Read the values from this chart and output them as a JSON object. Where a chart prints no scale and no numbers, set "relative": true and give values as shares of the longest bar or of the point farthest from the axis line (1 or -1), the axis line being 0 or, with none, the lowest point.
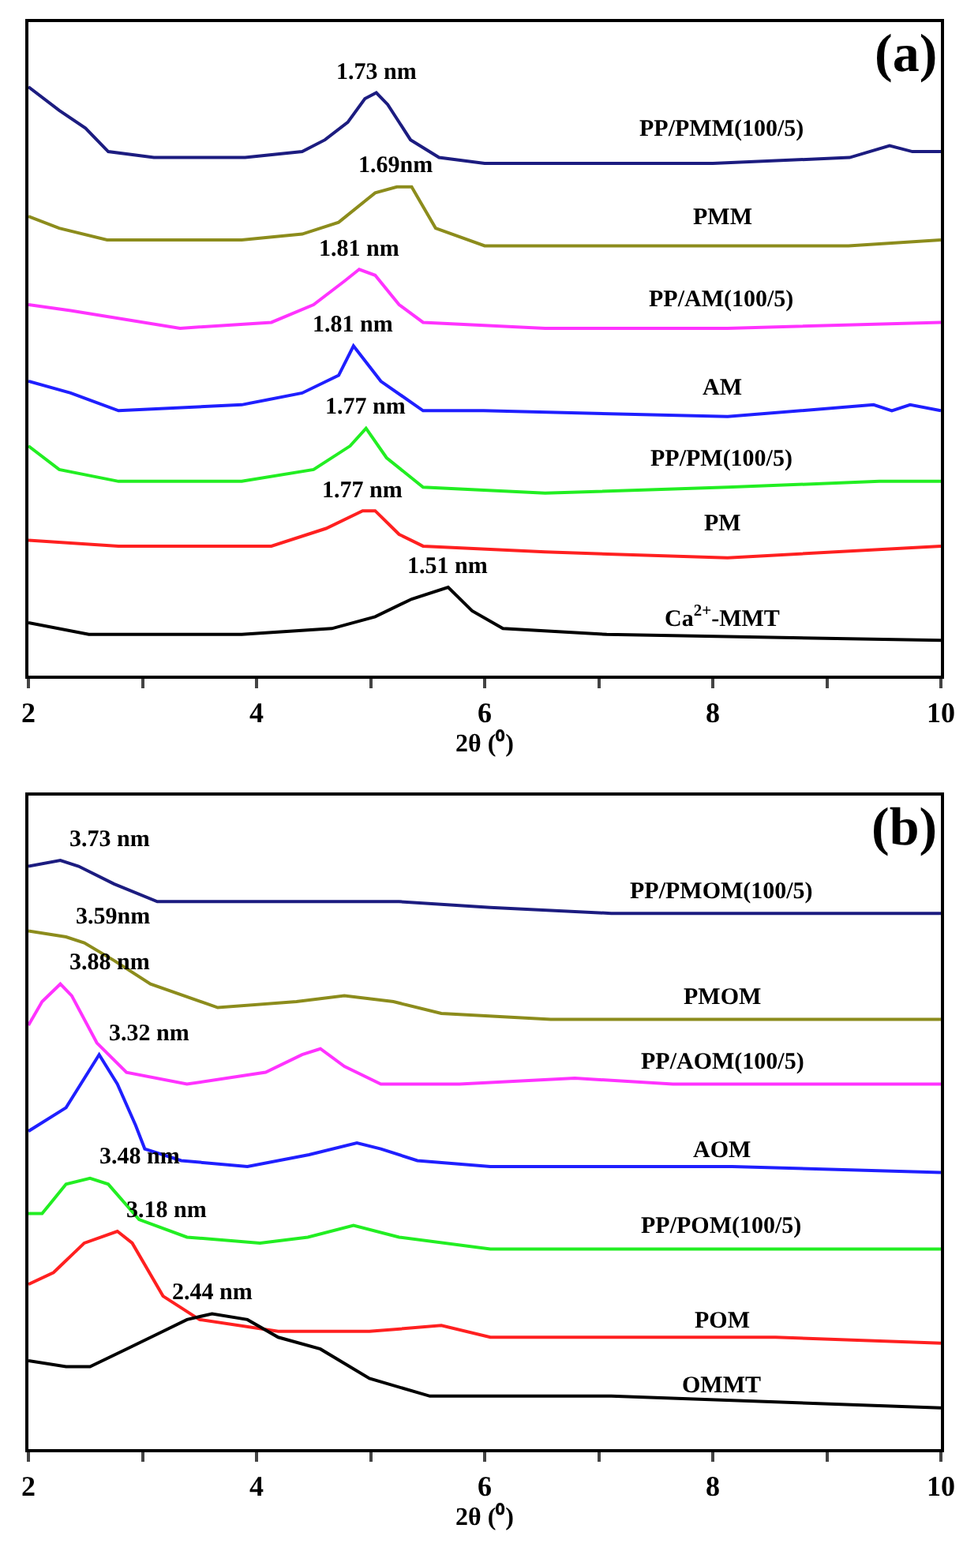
{
  "chart_data": [
    {
      "type": "line",
      "title": "(a)",
      "xlabel": "2θ (⁰)",
      "relative": true,
      "xlim": [
        2,
        10
      ],
      "xticks": [
        2,
        {
          "value": 3,
          "label": null
        },
        4,
        {
          "value": 5,
          "label": null
        },
        6,
        {
          "value": 7,
          "label": null
        },
        8,
        {
          "value": 9,
          "label": null
        },
        10
      ],
      "series": [
        {
          "name": "PP/PMM(100/5)",
          "color": "#1c1c80",
          "x": [
            2,
            2.27,
            2.5,
            2.7,
            3.1,
            3.9,
            4.4,
            4.6,
            4.8,
            4.95,
            5.05,
            5.15,
            5.35,
            5.6,
            6,
            7,
            8,
            9.2,
            9.55,
            9.75,
            10
          ],
          "values": [
            1.0,
            0.96,
            0.93,
            0.89,
            0.88,
            0.88,
            0.89,
            0.91,
            0.94,
            0.98,
            0.99,
            0.97,
            0.91,
            0.88,
            0.87,
            0.87,
            0.87,
            0.88,
            0.9,
            0.89,
            0.89
          ]
        },
        {
          "name": "PMM",
          "color": "#8c8c1c",
          "x": [
            2,
            2.27,
            2.69,
            3.87,
            4.4,
            4.72,
            5.04,
            5.23,
            5.36,
            5.57,
            6,
            7.07,
            9.19,
            10
          ],
          "values": [
            0.78,
            0.76,
            0.74,
            0.74,
            0.75,
            0.77,
            0.82,
            0.83,
            0.83,
            0.76,
            0.73,
            0.73,
            0.73,
            0.74
          ]
        },
        {
          "name": "PP/AM(100/5)",
          "color": "#ff33ff",
          "x": [
            2,
            2.37,
            3.33,
            4.13,
            4.5,
            4.77,
            4.9,
            5.04,
            5.25,
            5.46,
            6.53,
            8.13,
            10
          ],
          "values": [
            0.63,
            0.62,
            0.59,
            0.6,
            0.63,
            0.67,
            0.69,
            0.68,
            0.63,
            0.6,
            0.59,
            0.59,
            0.6
          ]
        },
        {
          "name": "AM",
          "color": "#1f1fff",
          "x": [
            2,
            2.37,
            2.79,
            3.87,
            4.4,
            4.72,
            4.85,
            5.09,
            5.46,
            5.99,
            8.13,
            9.41,
            9.57,
            9.73,
            10
          ],
          "values": [
            0.5,
            0.48,
            0.45,
            0.46,
            0.48,
            0.51,
            0.56,
            0.5,
            0.45,
            0.45,
            0.44,
            0.46,
            0.45,
            0.46,
            0.45
          ]
        },
        {
          "name": "PP/PM(100/5)",
          "color": "#22ee22",
          "x": [
            2,
            2.27,
            2.79,
            3.87,
            4.5,
            4.82,
            4.96,
            5.14,
            5.46,
            6.53,
            8.13,
            9.46,
            9.73,
            10
          ],
          "values": [
            0.39,
            0.35,
            0.33,
            0.33,
            0.35,
            0.39,
            0.42,
            0.37,
            0.32,
            0.31,
            0.32,
            0.33,
            0.33,
            0.33
          ]
        },
        {
          "name": "PM",
          "color": "#ff2020",
          "x": [
            2,
            2.79,
            4.13,
            4.61,
            4.93,
            5.04,
            5.25,
            5.46,
            6.53,
            8.13,
            10
          ],
          "values": [
            0.23,
            0.22,
            0.22,
            0.25,
            0.28,
            0.28,
            0.24,
            0.22,
            0.21,
            0.2,
            0.22
          ]
        },
        {
          "name": "Ca$^{2+}$-MMT",
          "color": "#000000",
          "x": [
            2,
            2.53,
            3.87,
            4.66,
            5.04,
            5.36,
            5.68,
            5.89,
            6.16,
            7.07,
            10
          ],
          "values": [
            0.09,
            0.07,
            0.07,
            0.08,
            0.1,
            0.13,
            0.15,
            0.11,
            0.08,
            0.07,
            0.06
          ]
        }
      ],
      "annotations": [
        {
          "text": "1.73 nm",
          "x": 5.05,
          "y": 0.99
        },
        {
          "text": "1.69nm",
          "x": 5.23,
          "y": 0.83
        },
        {
          "text": "1.81 nm",
          "x": 4.9,
          "y": 0.69
        },
        {
          "text": "1.81 nm",
          "x": 4.85,
          "y": 0.56
        },
        {
          "text": "1.77 nm",
          "x": 4.96,
          "y": 0.42
        },
        {
          "text": "1.77 nm",
          "x": 4.93,
          "y": 0.28
        },
        {
          "text": "1.51 nm",
          "x": 5.68,
          "y": 0.15
        }
      ]
    },
    {
      "type": "line",
      "title": "(b)",
      "xlabel": "2θ (⁰)",
      "relative": true,
      "xlim": [
        2,
        10
      ],
      "xticks": [
        2,
        {
          "value": 3,
          "label": null
        },
        4,
        {
          "value": 5,
          "label": null
        },
        6,
        {
          "value": 7,
          "label": null
        },
        8,
        {
          "value": 9,
          "label": null
        },
        10
      ],
      "series": [
        {
          "name": "PP/PMOM(100/5)",
          "color": "#1c1c80",
          "x": [
            2,
            2.28,
            2.44,
            2.75,
            3.13,
            3.66,
            4.56,
            5.25,
            6.05,
            7.11,
            10
          ],
          "values": [
            0.99,
            1.0,
            0.99,
            0.96,
            0.93,
            0.93,
            0.93,
            0.93,
            0.92,
            0.91,
            0.91
          ]
        },
        {
          "name": "PMOM",
          "color": "#8c8c1c",
          "x": [
            2,
            2.33,
            2.49,
            2.75,
            3.07,
            3.66,
            4.35,
            4.77,
            5.2,
            5.62,
            6.58,
            8.17,
            10
          ],
          "values": [
            0.88,
            0.87,
            0.86,
            0.83,
            0.79,
            0.75,
            0.76,
            0.77,
            0.76,
            0.74,
            0.73,
            0.73,
            0.73
          ]
        },
        {
          "name": "PP/AOM(100/5)",
          "color": "#ff33ff",
          "x": [
            2,
            2.12,
            2.28,
            2.38,
            2.6,
            2.86,
            3.39,
            4.08,
            4.4,
            4.56,
            4.77,
            5.09,
            5.78,
            6.79,
            7.65,
            9.5,
            10
          ],
          "values": [
            0.72,
            0.76,
            0.79,
            0.77,
            0.69,
            0.64,
            0.62,
            0.64,
            0.67,
            0.68,
            0.65,
            0.62,
            0.62,
            0.63,
            0.62,
            0.62,
            0.62
          ]
        },
        {
          "name": "AOM",
          "color": "#1f1fff",
          "x": [
            2,
            2.33,
            2.62,
            2.78,
            2.94,
            3.02,
            3.34,
            3.92,
            4.46,
            4.88,
            5.09,
            5.41,
            6.05,
            7.11,
            8.17,
            10
          ],
          "values": [
            0.54,
            0.58,
            0.67,
            0.62,
            0.55,
            0.51,
            0.49,
            0.48,
            0.5,
            0.52,
            0.51,
            0.49,
            0.48,
            0.48,
            0.48,
            0.47
          ]
        },
        {
          "name": "PP/POM(100/5)",
          "color": "#22ee22",
          "x": [
            2,
            2.12,
            2.33,
            2.54,
            2.7,
            2.97,
            3.39,
            4.03,
            4.45,
            4.85,
            5.25,
            6.05,
            8.17,
            9.55,
            10
          ],
          "values": [
            0.4,
            0.4,
            0.45,
            0.46,
            0.45,
            0.39,
            0.36,
            0.35,
            0.36,
            0.38,
            0.36,
            0.34,
            0.34,
            0.34,
            0.34
          ]
        },
        {
          "name": "POM",
          "color": "#ff2020",
          "x": [
            2,
            2.22,
            2.49,
            2.78,
            2.91,
            3.18,
            3.5,
            4.19,
            4.99,
            5.62,
            6.05,
            7.11,
            8.55,
            10
          ],
          "values": [
            0.28,
            0.3,
            0.35,
            0.37,
            0.35,
            0.26,
            0.22,
            0.2,
            0.2,
            0.21,
            0.19,
            0.19,
            0.19,
            0.18
          ]
        },
        {
          "name": "OMMT",
          "color": "#000000",
          "x": [
            2,
            2.33,
            2.54,
            2.86,
            3.18,
            3.39,
            3.61,
            3.92,
            4.19,
            4.56,
            4.99,
            5.52,
            6.05,
            7.11,
            10
          ],
          "values": [
            0.15,
            0.14,
            0.14,
            0.17,
            0.2,
            0.22,
            0.23,
            0.22,
            0.19,
            0.17,
            0.12,
            0.09,
            0.09,
            0.09,
            0.07
          ]
        }
      ],
      "annotations": [
        {
          "text": "3.73 nm",
          "x": 2.28,
          "y": 1.0
        },
        {
          "text": "3.59nm",
          "x": 2.33,
          "y": 0.87
        },
        {
          "text": "3.88 nm",
          "x": 2.28,
          "y": 0.79
        },
        {
          "text": "3.32 nm",
          "x": 2.62,
          "y": 0.67
        },
        {
          "text": "3.48 nm",
          "x": 2.54,
          "y": 0.46
        },
        {
          "text": "3.18 nm",
          "x": 2.78,
          "y": 0.37
        },
        {
          "text": "2.44 nm",
          "x": 3.61,
          "y": 0.23
        }
      ]
    }
  ]
}
